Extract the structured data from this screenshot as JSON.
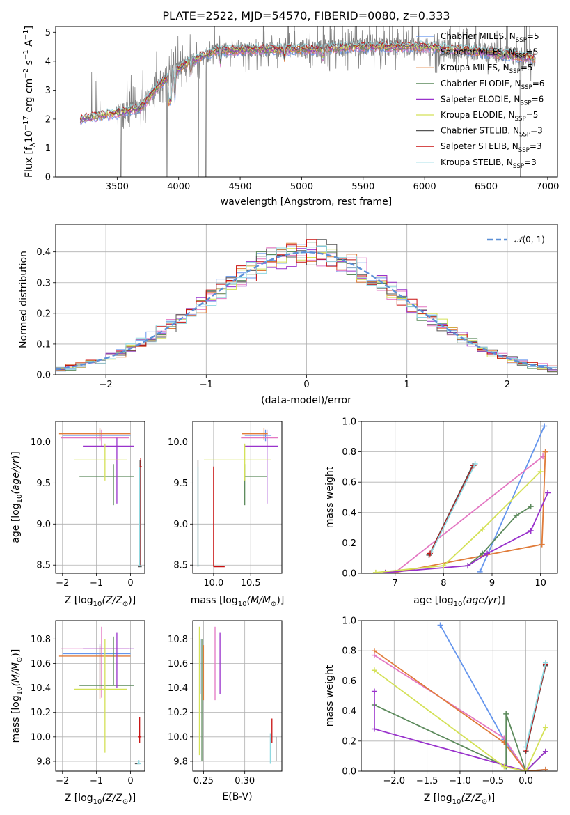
{
  "title": "PLATE=2522, MJD=54570, FIBERID=0080, z=0.333",
  "colors": {
    "Chabrier MILES": "#6495ed",
    "Salpeter MILES": "#e377c2",
    "Kroupa MILES": "#e07b39",
    "Chabrier ELODIE": "#5c8a5c",
    "Salpeter ELODIE": "#9932cc",
    "Kroupa ELODIE": "#d4e157",
    "Chabrier STELIB": "#555555",
    "Salpeter STELIB": "#c81010",
    "Kroupa STELIB": "#8fd8e0",
    "data": "#808080",
    "normal": "#5b8fd6"
  },
  "chart_data": [
    {
      "type": "line",
      "name": "spectrum",
      "xlabel": "wavelength [Angstrom, rest frame]",
      "ylabel": "Flux [f_λ 10^-17 erg cm^-2 s^-1 A^-1]",
      "xlim": [
        3000,
        7080
      ],
      "ylim": [
        0,
        5.2
      ],
      "xticks": [
        3500,
        4000,
        4500,
        5000,
        5500,
        6000,
        6500,
        7000
      ],
      "yticks": [
        0,
        1,
        2,
        3,
        4,
        5
      ],
      "legend": {
        "placement": "upper-right",
        "entries": [
          {
            "base": "Chabrier MILES, N",
            "sub": "SSP",
            "tail": "=5"
          },
          {
            "base": "Salpeter MILES, N",
            "sub": "SSP",
            "tail": "=5"
          },
          {
            "base": "Kroupa MILES, N",
            "sub": "SSP",
            "tail": "=5"
          },
          {
            "base": "Chabrier ELODIE, N",
            "sub": "SSP",
            "tail": "=6"
          },
          {
            "base": "Salpeter ELODIE, N",
            "sub": "SSP",
            "tail": "=6"
          },
          {
            "base": "Kroupa ELODIE, N",
            "sub": "SSP",
            "tail": "=5"
          },
          {
            "base": "Chabrier STELIB, N",
            "sub": "SSP",
            "tail": "=3"
          },
          {
            "base": "Salpeter STELIB, N",
            "sub": "SSP",
            "tail": "=3"
          },
          {
            "base": "Kroupa STELIB, N",
            "sub": "SSP",
            "tail": "=3"
          }
        ]
      },
      "continuum": [
        [
          3200,
          2.0
        ],
        [
          3500,
          2.2
        ],
        [
          3700,
          2.4
        ],
        [
          3800,
          3.0
        ],
        [
          3950,
          3.6
        ],
        [
          4100,
          4.0
        ],
        [
          4300,
          4.35
        ],
        [
          4600,
          4.4
        ],
        [
          5000,
          4.4
        ],
        [
          5500,
          4.5
        ],
        [
          6000,
          4.5
        ],
        [
          6500,
          4.3
        ],
        [
          6900,
          4.1
        ]
      ]
    },
    {
      "type": "line",
      "name": "residual-histogram",
      "xlabel": "(data-model)/error",
      "ylabel": "Normed distribution",
      "xlim": [
        -2.5,
        2.5
      ],
      "ylim": [
        0,
        0.49
      ],
      "xticks": [
        -2,
        -1,
        0,
        1,
        2
      ],
      "yticks": [
        0.0,
        0.1,
        0.2,
        0.3,
        0.4
      ],
      "grid": true,
      "legend": {
        "placement": "upper-right",
        "label": "N(0,1)"
      },
      "bin_width": 0.1
    },
    {
      "type": "scatter",
      "name": "age-vs-Z",
      "xlabel": "Z [log10(Z/Z☉)]",
      "ylabel": "age [log10(age/yr)]",
      "xlim": [
        -2.2,
        0.42
      ],
      "ylim": [
        8.4,
        10.25
      ],
      "xticks": [
        -2,
        -1,
        0
      ],
      "yticks": [
        8.5,
        9.0,
        9.5,
        10.0
      ],
      "grid": true,
      "points": [
        {
          "model": "Chabrier MILES",
          "x": -0.9,
          "xerr": [
            1.1,
            0.9
          ],
          "y": 10.08,
          "yerr": [
            0.07,
            0.07
          ]
        },
        {
          "model": "Salpeter MILES",
          "x": -0.85,
          "xerr": [
            1.2,
            0.8
          ],
          "y": 10.05,
          "yerr": [
            0.1,
            0.1
          ]
        },
        {
          "model": "Kroupa MILES",
          "x": -0.9,
          "xerr": [
            1.2,
            0.9
          ],
          "y": 10.1,
          "yerr": [
            0.07,
            0.07
          ]
        },
        {
          "model": "Chabrier ELODIE",
          "x": -0.5,
          "xerr": [
            1.0,
            0.6
          ],
          "y": 9.58,
          "yerr": [
            0.35,
            0.15
          ]
        },
        {
          "model": "Salpeter ELODIE",
          "x": -0.4,
          "xerr": [
            1.0,
            0.5
          ],
          "y": 9.95,
          "yerr": [
            0.7,
            0.1
          ]
        },
        {
          "model": "Kroupa ELODIE",
          "x": -0.75,
          "xerr": [
            0.9,
            0.65
          ],
          "y": 9.78,
          "yerr": [
            0.25,
            0.2
          ]
        },
        {
          "model": "Chabrier STELIB",
          "x": 0.28,
          "xerr": [
            0.05,
            0.05
          ],
          "y": 8.48,
          "yerr": [
            0.0,
            1.3
          ]
        },
        {
          "model": "Salpeter STELIB",
          "x": 0.3,
          "xerr": [
            0.03,
            0.03
          ],
          "y": 9.7,
          "yerr": [
            1.2,
            0.1
          ]
        },
        {
          "model": "Kroupa STELIB",
          "x": 0.27,
          "xerr": [
            0.05,
            0.05
          ],
          "y": 8.49,
          "yerr": [
            0.0,
            1.2
          ]
        }
      ]
    },
    {
      "type": "scatter",
      "name": "age-vs-mass",
      "xlabel": "mass [log10(M/M☉)]",
      "ylabel": "",
      "xlim": [
        9.72,
        10.92
      ],
      "ylim": [
        8.4,
        10.25
      ],
      "xticks": [
        10.0,
        10.5
      ],
      "yticks": [
        8.5,
        9.0,
        9.5,
        10.0
      ],
      "grid": true,
      "points": [
        {
          "model": "Chabrier MILES",
          "x": 10.7,
          "xerr": [
            0.28,
            0.08
          ],
          "y": 10.08,
          "yerr": [
            0.07,
            0.07
          ]
        },
        {
          "model": "Salpeter MILES",
          "x": 10.72,
          "xerr": [
            0.35,
            0.15
          ],
          "y": 10.05,
          "yerr": [
            0.1,
            0.1
          ]
        },
        {
          "model": "Kroupa MILES",
          "x": 10.68,
          "xerr": [
            0.3,
            0.05
          ],
          "y": 10.1,
          "yerr": [
            0.07,
            0.07
          ]
        },
        {
          "model": "Chabrier ELODIE",
          "x": 10.42,
          "xerr": [
            0.0,
            0.3
          ],
          "y": 9.58,
          "yerr": [
            0.35,
            0.15
          ]
        },
        {
          "model": "Salpeter ELODIE",
          "x": 10.72,
          "xerr": [
            0.3,
            0.15
          ],
          "y": 9.95,
          "yerr": [
            0.7,
            0.1
          ]
        },
        {
          "model": "Kroupa ELODIE",
          "x": 10.42,
          "xerr": [
            0.55,
            0.35
          ],
          "y": 9.78,
          "yerr": [
            0.25,
            0.2
          ]
        },
        {
          "model": "Chabrier STELIB",
          "x": 9.79,
          "xerr": [
            0.0,
            0.0
          ],
          "y": 8.48,
          "yerr": [
            0.0,
            1.3
          ]
        },
        {
          "model": "Salpeter STELIB",
          "x": 10.0,
          "xerr": [
            0.0,
            0.15
          ],
          "y": 8.48,
          "yerr": [
            0.0,
            1.22
          ]
        },
        {
          "model": "Kroupa STELIB",
          "x": 9.79,
          "xerr": [
            0.0,
            0.02
          ],
          "y": 8.49,
          "yerr": [
            0.0,
            1.2
          ]
        }
      ]
    },
    {
      "type": "line",
      "name": "mass-weight-vs-age",
      "xlabel": "age [log10(age/yr)]",
      "ylabel": "mass weight",
      "xlim": [
        6.3,
        10.35
      ],
      "ylim": [
        0.0,
        1.0
      ],
      "xticks": [
        7,
        8,
        9,
        10
      ],
      "yticks": [
        0.0,
        0.2,
        0.4,
        0.6,
        0.8,
        1.0
      ],
      "grid": true,
      "series": [
        {
          "model": "Chabrier MILES",
          "x": [
            8.75,
            10.08
          ],
          "y": [
            0.01,
            0.97
          ]
        },
        {
          "model": "Salpeter MILES",
          "x": [
            7.0,
            10.05
          ],
          "y": [
            0.005,
            0.77
          ]
        },
        {
          "model": "Kroupa MILES",
          "x": [
            6.8,
            7.0,
            10.03,
            10.1
          ],
          "y": [
            0.005,
            0.005,
            0.19,
            0.8
          ]
        },
        {
          "model": "Chabrier ELODIE",
          "x": [
            8.5,
            8.8,
            9.5,
            9.8
          ],
          "y": [
            0.05,
            0.13,
            0.38,
            0.44
          ]
        },
        {
          "model": "Salpeter ELODIE",
          "x": [
            6.8,
            8.5,
            8.9,
            9.8,
            10.15
          ],
          "y": [
            0.005,
            0.05,
            0.13,
            0.28,
            0.53
          ]
        },
        {
          "model": "Kroupa ELODIE",
          "x": [
            6.6,
            8.0,
            8.8,
            10.0
          ],
          "y": [
            0.005,
            0.05,
            0.29,
            0.67
          ]
        },
        {
          "model": "Chabrier STELIB",
          "x": [
            7.7,
            8.6
          ],
          "y": [
            0.12,
            0.71
          ]
        },
        {
          "model": "Salpeter STELIB",
          "x": [
            7.72,
            8.62
          ],
          "y": [
            0.13,
            0.71
          ]
        },
        {
          "model": "Kroupa STELIB",
          "x": [
            7.75,
            8.65
          ],
          "y": [
            0.14,
            0.72
          ]
        }
      ]
    },
    {
      "type": "scatter",
      "name": "mass-vs-Z",
      "xlabel": "Z [log10(Z/Z☉)]",
      "ylabel": "mass [log10(M/M☉)]",
      "xlim": [
        -2.2,
        0.42
      ],
      "ylim": [
        9.72,
        10.95
      ],
      "xticks": [
        -2,
        -1,
        0
      ],
      "yticks": [
        9.8,
        10.0,
        10.2,
        10.4,
        10.6,
        10.8
      ],
      "grid": true,
      "points": [
        {
          "model": "Chabrier MILES",
          "x": -0.9,
          "xerr": [
            1.1,
            0.9
          ],
          "y": 10.68,
          "yerr": [
            0.3,
            0.08
          ]
        },
        {
          "model": "Salpeter MILES",
          "x": -0.85,
          "xerr": [
            1.2,
            0.8
          ],
          "y": 10.72,
          "yerr": [
            0.4,
            0.18
          ]
        },
        {
          "model": "Kroupa MILES",
          "x": -0.9,
          "xerr": [
            1.2,
            0.9
          ],
          "y": 10.66,
          "yerr": [
            0.35,
            0.08
          ]
        },
        {
          "model": "Chabrier ELODIE",
          "x": -0.5,
          "xerr": [
            1.0,
            0.6
          ],
          "y": 10.42,
          "yerr": [
            0.0,
            0.4
          ]
        },
        {
          "model": "Salpeter ELODIE",
          "x": -0.4,
          "xerr": [
            1.0,
            0.5
          ],
          "y": 10.72,
          "yerr": [
            0.32,
            0.13
          ]
        },
        {
          "model": "Kroupa ELODIE",
          "x": -0.75,
          "xerr": [
            0.9,
            0.65
          ],
          "y": 10.39,
          "yerr": [
            0.52,
            0.41
          ]
        },
        {
          "model": "Chabrier STELIB",
          "x": 0.2,
          "xerr": [
            0.07,
            0.07
          ],
          "y": 9.78,
          "yerr": [
            0.0,
            0.0
          ]
        },
        {
          "model": "Salpeter STELIB",
          "x": 0.27,
          "xerr": [
            0.05,
            0.05
          ],
          "y": 10.0,
          "yerr": [
            0.05,
            0.16
          ]
        },
        {
          "model": "Kroupa STELIB",
          "x": 0.25,
          "xerr": [
            0.05,
            0.05
          ],
          "y": 9.78,
          "yerr": [
            0.0,
            0.03
          ]
        }
      ]
    },
    {
      "type": "scatter",
      "name": "mass-vs-EBV",
      "xlabel": "E(B-V)",
      "ylabel": "",
      "xlim": [
        0.237,
        0.345
      ],
      "ylim": [
        9.72,
        10.95
      ],
      "xticks": [
        0.25,
        0.3
      ],
      "yticks": [
        9.8,
        10.0,
        10.2,
        10.4,
        10.6,
        10.8
      ],
      "grid": true,
      "points": [
        {
          "model": "Chabrier MILES",
          "x": 0.246,
          "y": 10.7,
          "yerr": [
            0.35,
            0.1
          ]
        },
        {
          "model": "Salpeter MILES",
          "x": 0.264,
          "y": 10.7,
          "yerr": [
            0.4,
            0.2
          ]
        },
        {
          "model": "Kroupa MILES",
          "x": 0.25,
          "y": 10.6,
          "yerr": [
            0.3,
            0.15
          ]
        },
        {
          "model": "Chabrier ELODIE",
          "x": 0.248,
          "y": 10.35,
          "yerr": [
            0.55,
            0.45
          ]
        },
        {
          "model": "Salpeter ELODIE",
          "x": 0.27,
          "y": 10.6,
          "yerr": [
            0.25,
            0.25
          ]
        },
        {
          "model": "Kroupa ELODIE",
          "x": 0.245,
          "y": 10.3,
          "yerr": [
            0.45,
            0.6
          ]
        },
        {
          "model": "Chabrier STELIB",
          "x": 0.338,
          "y": 9.9,
          "yerr": [
            0.1,
            0.1
          ]
        },
        {
          "model": "Salpeter STELIB",
          "x": 0.333,
          "y": 10.05,
          "yerr": [
            0.1,
            0.1
          ]
        },
        {
          "model": "Kroupa STELIB",
          "x": 0.331,
          "y": 9.88,
          "yerr": [
            0.1,
            0.15
          ]
        }
      ]
    },
    {
      "type": "line",
      "name": "mass-weight-vs-Z",
      "xlabel": "Z [log10(Z/Z☉)]",
      "ylabel": "mass weight",
      "xlim": [
        -2.5,
        0.48
      ],
      "ylim": [
        0.0,
        1.0
      ],
      "xticks": [
        -2.0,
        -1.5,
        -1.0,
        -0.5,
        0.0
      ],
      "yticks": [
        0.0,
        0.2,
        0.4,
        0.6,
        0.8,
        1.0
      ],
      "grid": true,
      "series": [
        {
          "model": "Chabrier MILES",
          "x": [
            -1.3,
            -0.33,
            0.0,
            0.3
          ],
          "y": [
            0.97,
            0.21,
            0.0,
            0.01
          ]
        },
        {
          "model": "Salpeter MILES",
          "x": [
            -2.3,
            -0.33,
            0.0,
            0.3
          ],
          "y": [
            0.77,
            0.22,
            0.0,
            0.13
          ]
        },
        {
          "model": "Kroupa MILES",
          "x": [
            -2.3,
            -0.33,
            0.0,
            0.3
          ],
          "y": [
            0.8,
            0.19,
            0.0,
            0.01
          ]
        },
        {
          "model": "Chabrier ELODIE",
          "x": [
            -2.3,
            -0.3,
            -0.3,
            0.0,
            0.3
          ],
          "y": [
            0.44,
            0.03,
            0.38,
            0.0,
            0.13
          ]
        },
        {
          "model": "Salpeter ELODIE",
          "x": [
            -2.3,
            -2.3,
            0.0,
            0.3
          ],
          "y": [
            0.53,
            0.28,
            0.0,
            0.13
          ]
        },
        {
          "model": "Kroupa ELODIE",
          "x": [
            -2.3,
            -0.33,
            0.0,
            0.3
          ],
          "y": [
            0.67,
            0.03,
            0.0,
            0.29
          ]
        },
        {
          "model": "Chabrier STELIB",
          "x": [
            0.0,
            0.3
          ],
          "y": [
            0.13,
            0.7
          ]
        },
        {
          "model": "Salpeter STELIB",
          "x": [
            0.0,
            0.3
          ],
          "y": [
            0.14,
            0.71
          ]
        },
        {
          "model": "Kroupa STELIB",
          "x": [
            0.0,
            0.3
          ],
          "y": [
            0.16,
            0.72
          ]
        }
      ]
    }
  ]
}
